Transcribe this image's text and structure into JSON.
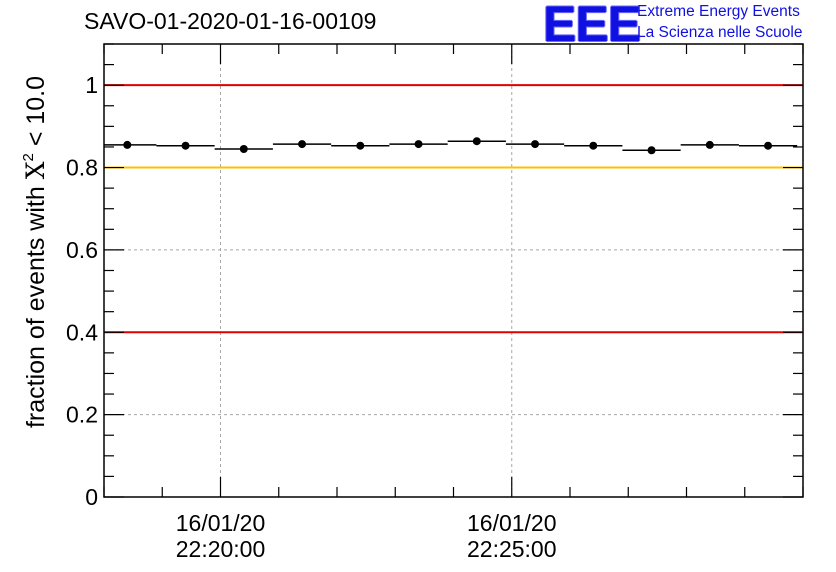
{
  "title": "SAVO-01-2020-01-16-00109",
  "logo": {
    "mark": "EEE",
    "line1": "Extreme Energy Events",
    "line2": "La Scienza nelle Scuole"
  },
  "ylabel": {
    "prefix": "fraction of events with ",
    "symbol": "X",
    "superscript": "2",
    "suffix": " < 10.0"
  },
  "chart_data": {
    "type": "scatter",
    "title": "SAVO-01-2020-01-16-00109",
    "ylabel": "fraction of events with X² < 10.0",
    "ylim": [
      0,
      1.1
    ],
    "yticks": [
      0,
      0.2,
      0.4,
      0.6,
      0.8,
      1
    ],
    "ytick_labels": [
      "0",
      "0.2",
      "0.4",
      "0.6",
      "0.8",
      "1"
    ],
    "xlim": [
      "16/01/20 22:18:00",
      "16/01/20 22:30:00"
    ],
    "xticks": [
      {
        "date": "16/01/20",
        "time": "22:20:00"
      },
      {
        "date": "16/01/20",
        "time": "22:25:00"
      }
    ],
    "grid": true,
    "reference_lines": [
      {
        "y": 1.0,
        "color": "#e00000"
      },
      {
        "y": 0.8,
        "color": "#ffc000"
      },
      {
        "y": 0.4,
        "color": "#e00000"
      }
    ],
    "x": [
      "22:18:24",
      "22:19:24",
      "22:20:24",
      "22:21:24",
      "22:22:24",
      "22:23:24",
      "22:24:24",
      "22:25:24",
      "22:26:24",
      "22:27:24",
      "22:28:24",
      "22:29:24"
    ],
    "bin_width_s": 60,
    "series": [
      {
        "values": [
          0.855,
          0.853,
          0.845,
          0.857,
          0.853,
          0.857,
          0.864,
          0.857,
          0.853,
          0.842,
          0.855,
          0.853
        ]
      }
    ]
  }
}
